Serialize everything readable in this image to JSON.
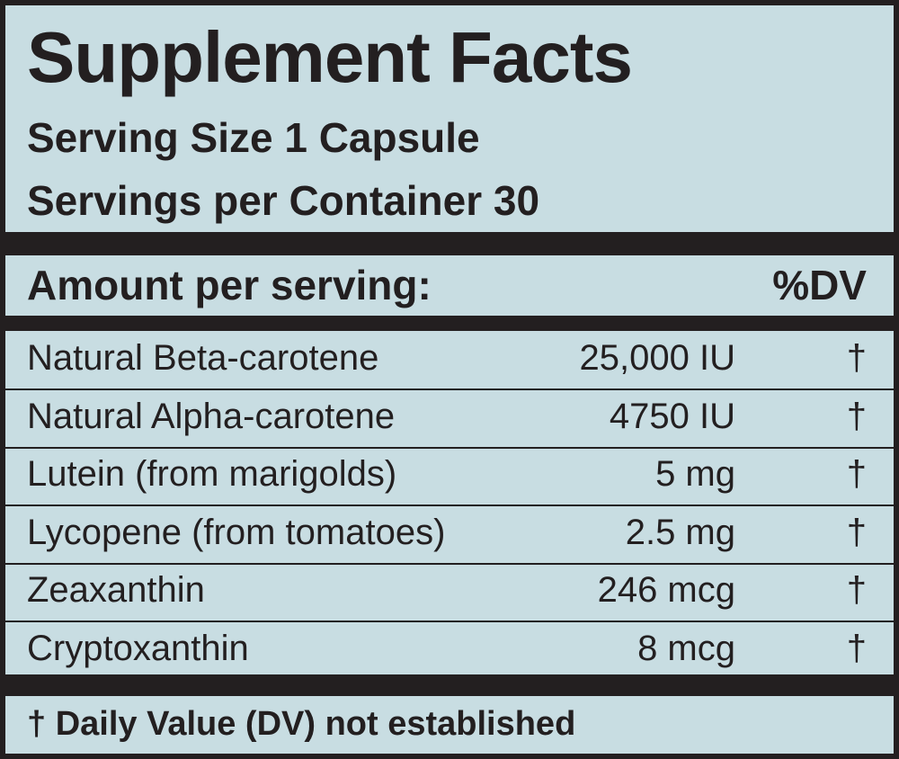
{
  "header": {
    "title": "Supplement Facts",
    "serving_size": "Serving Size 1 Capsule",
    "servings_per_container": "Servings per Container 30"
  },
  "table": {
    "columns": [
      "Amount per serving:",
      "%DV"
    ],
    "rows": [
      [
        "Natural Beta-carotene",
        "25,000 IU",
        "†"
      ],
      [
        "Natural Alpha-carotene",
        "4750 IU",
        "†"
      ],
      [
        "Lutein (from marigolds)",
        "5 mg",
        "†"
      ],
      [
        "Lycopene (from tomatoes)",
        "2.5 mg",
        "†"
      ],
      [
        "Zeaxanthin",
        "246 mcg",
        "†"
      ],
      [
        "Cryptoxanthin",
        "8 mcg",
        "†"
      ]
    ]
  },
  "footnote": "† Daily Value (DV) not established"
}
